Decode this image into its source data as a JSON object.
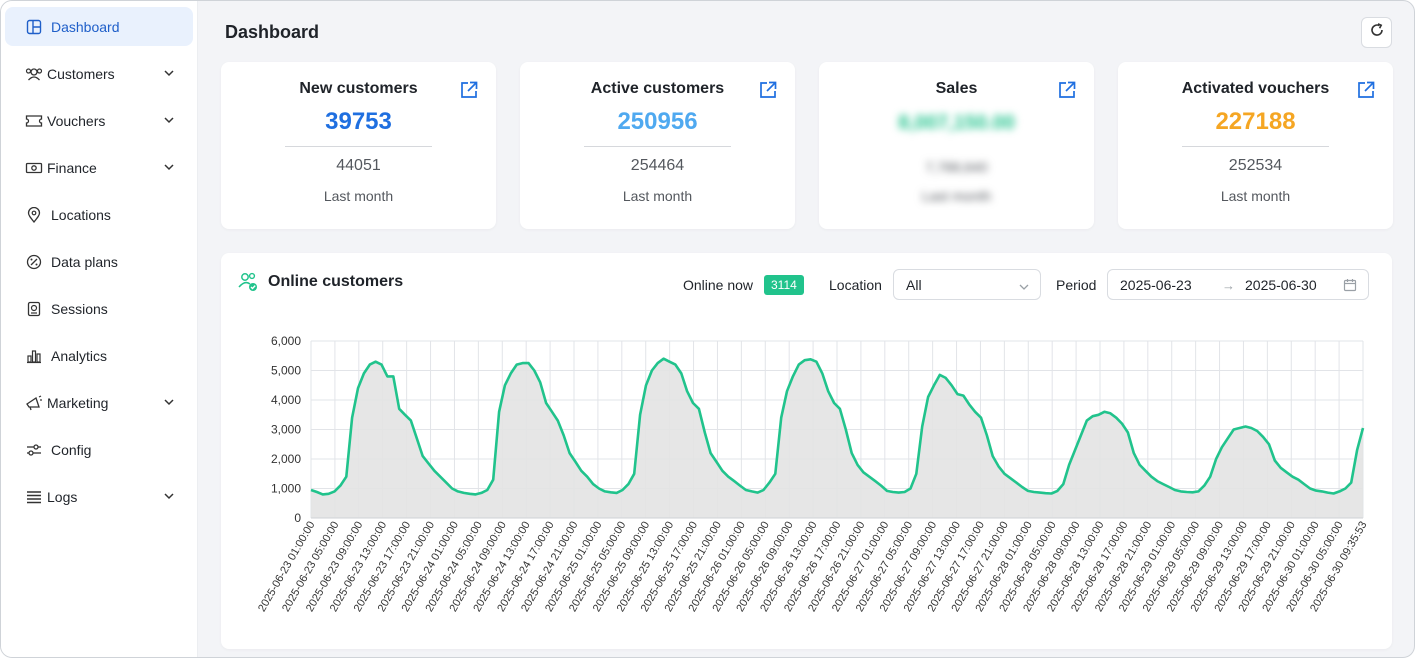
{
  "sidebar": {
    "items": [
      {
        "label": "Dashboard",
        "icon": "dashboard-icon"
      },
      {
        "label": "Customers",
        "icon": "customers-icon"
      },
      {
        "label": "Vouchers",
        "icon": "ticket-icon"
      },
      {
        "label": "Finance",
        "icon": "money-icon"
      },
      {
        "label": "Locations",
        "icon": "location-pin-icon"
      },
      {
        "label": "Data plans",
        "icon": "percent-icon"
      },
      {
        "label": "Sessions",
        "icon": "sessions-icon"
      },
      {
        "label": "Analytics",
        "icon": "bar-chart-icon"
      },
      {
        "label": "Marketing",
        "icon": "megaphone-icon"
      },
      {
        "label": "Config",
        "icon": "sliders-icon"
      },
      {
        "label": "Logs",
        "icon": "list-icon"
      }
    ]
  },
  "header": {
    "title": "Dashboard"
  },
  "cards": [
    {
      "title": "New customers",
      "value": "39753",
      "previous": "44051",
      "label": "Last month",
      "color": "#1f6fe0"
    },
    {
      "title": "Active customers",
      "value": "250956",
      "previous": "254464",
      "label": "Last month",
      "color": "#4fa9f0"
    },
    {
      "title": "Sales",
      "value": "8,007,150.00",
      "previous": "7,788,640",
      "label": "Last month",
      "color": "#21c38c"
    },
    {
      "title": "Activated vouchers",
      "value": "227188",
      "previous": "252534",
      "label": "Last month",
      "color": "#f5a623"
    }
  ],
  "online": {
    "title": "Online customers",
    "online_now_label": "Online now",
    "online_now_value": "3114",
    "location_label": "Location",
    "location_value": "All",
    "period_label": "Period",
    "period_start": "2025-06-23",
    "period_end": "2025-06-30",
    "arrow": "→"
  },
  "chart_data": {
    "type": "area",
    "ylim": [
      0,
      6000
    ],
    "yticks": [
      "0",
      "1,000",
      "2,000",
      "3,000",
      "4,000",
      "5,000",
      "6,000"
    ],
    "grid": true,
    "line_color": "#21c38c",
    "fill_color": "#e3e3e3",
    "x_labels": [
      "2025-06-23 01:00:00",
      "2025-06-23 05:00:00",
      "2025-06-23 09:00:00",
      "2025-06-23 13:00:00",
      "2025-06-23 17:00:00",
      "2025-06-23 21:00:00",
      "2025-06-24 01:00:00",
      "2025-06-24 05:00:00",
      "2025-06-24 09:00:00",
      "2025-06-24 13:00:00",
      "2025-06-24 17:00:00",
      "2025-06-24 21:00:00",
      "2025-06-25 01:00:00",
      "2025-06-25 05:00:00",
      "2025-06-25 09:00:00",
      "2025-06-25 13:00:00",
      "2025-06-25 17:00:00",
      "2025-06-25 21:00:00",
      "2025-06-26 01:00:00",
      "2025-06-26 05:00:00",
      "2025-06-26 09:00:00",
      "2025-06-26 13:00:00",
      "2025-06-26 17:00:00",
      "2025-06-26 21:00:00",
      "2025-06-27 01:00:00",
      "2025-06-27 05:00:00",
      "2025-06-27 09:00:00",
      "2025-06-27 13:00:00",
      "2025-06-27 17:00:00",
      "2025-06-27 21:00:00",
      "2025-06-28 01:00:00",
      "2025-06-28 05:00:00",
      "2025-06-28 09:00:00",
      "2025-06-28 13:00:00",
      "2025-06-28 17:00:00",
      "2025-06-28 21:00:00",
      "2025-06-29 01:00:00",
      "2025-06-29 05:00:00",
      "2025-06-29 09:00:00",
      "2025-06-29 13:00:00",
      "2025-06-29 17:00:00",
      "2025-06-29 21:00:00",
      "2025-06-30 01:00:00",
      "2025-06-30 05:00:00",
      "2025-06-30 09:35:53"
    ],
    "values": [
      950,
      880,
      800,
      820,
      900,
      1100,
      1400,
      3400,
      4400,
      4900,
      5200,
      5300,
      5200,
      4800,
      4800,
      3700,
      3500,
      3300,
      2700,
      2100,
      1850,
      1600,
      1400,
      1200,
      1000,
      900,
      850,
      820,
      800,
      850,
      950,
      1300,
      3600,
      4500,
      4900,
      5200,
      5250,
      5250,
      5000,
      4600,
      3900,
      3600,
      3300,
      2800,
      2200,
      1900,
      1600,
      1400,
      1150,
      1000,
      900,
      870,
      850,
      950,
      1150,
      1500,
      3500,
      4500,
      5000,
      5250,
      5400,
      5300,
      5200,
      4900,
      4300,
      3900,
      3700,
      2900,
      2200,
      1900,
      1600,
      1400,
      1250,
      1100,
      950,
      900,
      860,
      950,
      1200,
      1500,
      3400,
      4300,
      4800,
      5200,
      5350,
      5380,
      5300,
      4900,
      4300,
      3900,
      3700,
      3000,
      2200,
      1800,
      1550,
      1400,
      1250,
      1100,
      920,
      880,
      860,
      880,
      1000,
      1500,
      3100,
      4100,
      4500,
      4850,
      4750,
      4500,
      4200,
      4150,
      3850,
      3600,
      3400,
      2800,
      2100,
      1750,
      1500,
      1350,
      1200,
      1050,
      920,
      880,
      860,
      840,
      830,
      920,
      1150,
      1800,
      2300,
      2800,
      3300,
      3450,
      3500,
      3600,
      3550,
      3400,
      3200,
      2900,
      2200,
      1800,
      1600,
      1400,
      1250,
      1150,
      1050,
      950,
      900,
      880,
      870,
      900,
      1100,
      1400,
      2000,
      2400,
      2700,
      3000,
      3050,
      3100,
      3050,
      2950,
      2750,
      2500,
      1950,
      1700,
      1550,
      1400,
      1300,
      1150,
      1000,
      930,
      900,
      860,
      830,
      900,
      1000,
      1200,
      2300,
      3050
    ]
  }
}
